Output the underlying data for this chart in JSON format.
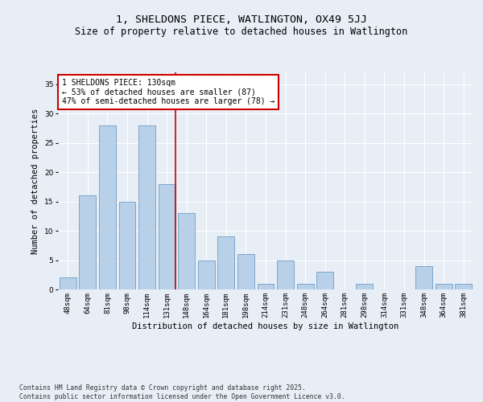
{
  "title_line1": "1, SHELDONS PIECE, WATLINGTON, OX49 5JJ",
  "title_line2": "Size of property relative to detached houses in Watlington",
  "xlabel": "Distribution of detached houses by size in Watlington",
  "ylabel": "Number of detached properties",
  "categories": [
    "48sqm",
    "64sqm",
    "81sqm",
    "98sqm",
    "114sqm",
    "131sqm",
    "148sqm",
    "164sqm",
    "181sqm",
    "198sqm",
    "214sqm",
    "231sqm",
    "248sqm",
    "264sqm",
    "281sqm",
    "298sqm",
    "314sqm",
    "331sqm",
    "348sqm",
    "364sqm",
    "381sqm"
  ],
  "values": [
    2,
    16,
    28,
    15,
    28,
    18,
    13,
    5,
    9,
    6,
    1,
    5,
    1,
    3,
    0,
    1,
    0,
    0,
    4,
    1,
    1
  ],
  "bar_color": "#b8d0e8",
  "bar_edge_color": "#5a8fc0",
  "highlight_index": 5,
  "highlight_line_color": "#cc0000",
  "annotation_text": "1 SHELDONS PIECE: 130sqm\n← 53% of detached houses are smaller (87)\n47% of semi-detached houses are larger (78) →",
  "annotation_box_color": "#ffffff",
  "annotation_box_edge": "#cc0000",
  "ylim": [
    0,
    37
  ],
  "yticks": [
    0,
    5,
    10,
    15,
    20,
    25,
    30,
    35
  ],
  "bg_color": "#e8eef6",
  "plot_bg_color": "#e8eef6",
  "footer_text": "Contains HM Land Registry data © Crown copyright and database right 2025.\nContains public sector information licensed under the Open Government Licence v3.0.",
  "title_fontsize": 9.5,
  "subtitle_fontsize": 8.5,
  "axis_label_fontsize": 7.5,
  "tick_fontsize": 6.5,
  "annotation_fontsize": 7,
  "footer_fontsize": 5.8
}
